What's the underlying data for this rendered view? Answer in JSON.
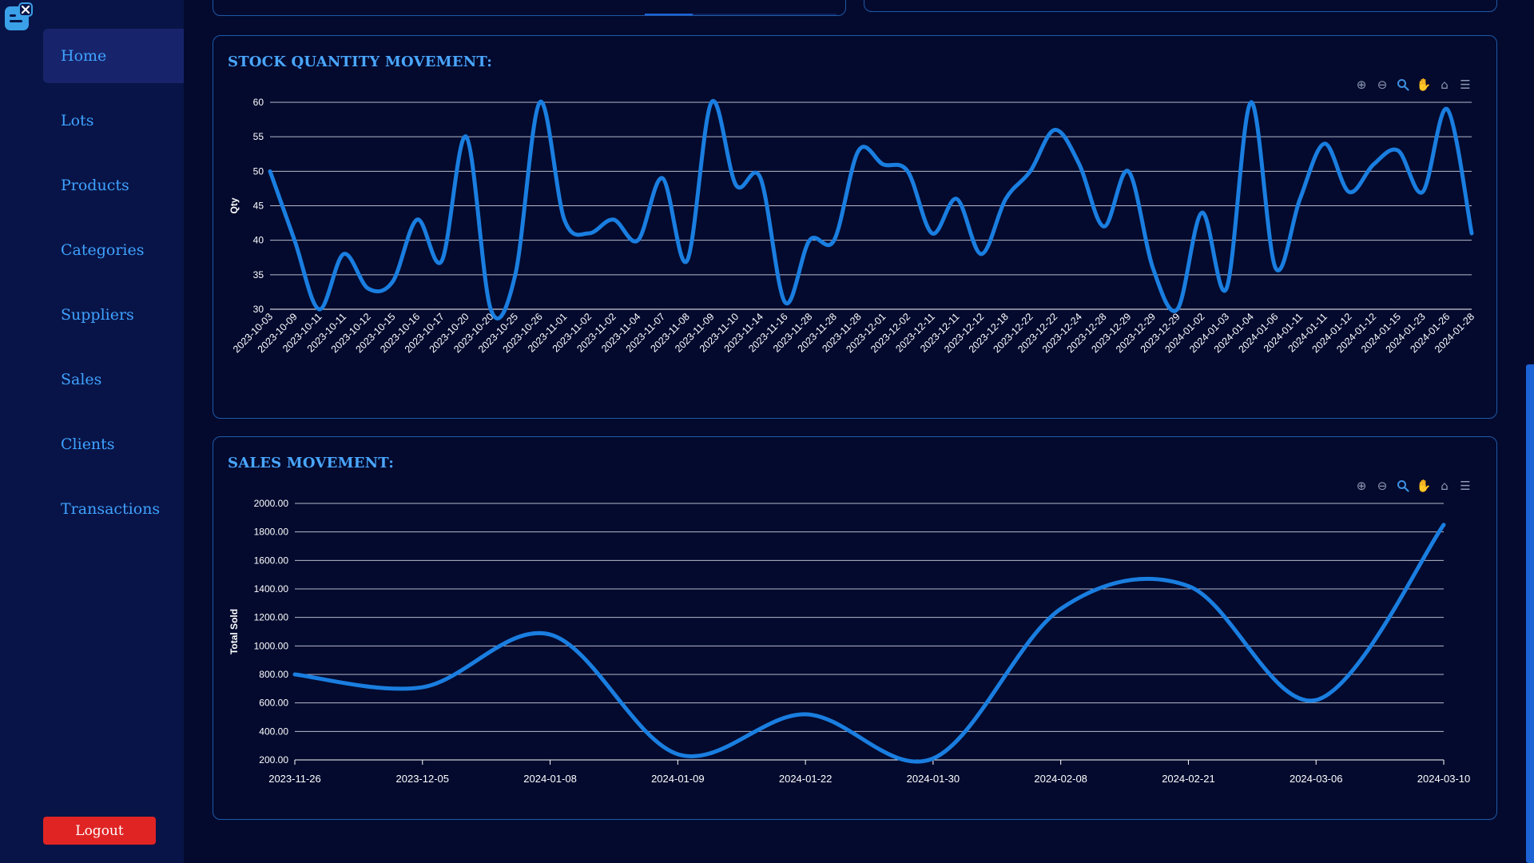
{
  "sidebar": {
    "items": [
      {
        "label": "Home",
        "active": true
      },
      {
        "label": "Lots",
        "active": false
      },
      {
        "label": "Products",
        "active": false
      },
      {
        "label": "Categories",
        "active": false
      },
      {
        "label": "Suppliers",
        "active": false
      },
      {
        "label": "Sales",
        "active": false
      },
      {
        "label": "Clients",
        "active": false
      },
      {
        "label": "Transactions",
        "active": false
      }
    ],
    "logout_label": "Logout"
  },
  "toolbar_icons": [
    "zoom-in-icon",
    "zoom-out-icon",
    "zoom-selection-icon",
    "pan-icon",
    "reset-home-icon",
    "menu-icon"
  ],
  "colors": {
    "line": "#1a7ee0",
    "accent": "#4aa6ff",
    "logout": "#e02424",
    "background": "#030a2e",
    "sidebar": "#081447"
  },
  "stock_chart": {
    "title": "STOCK QUANTITY MOVEMENT:",
    "chart_data": {
      "type": "line",
      "title": "STOCK QUANTITY MOVEMENT:",
      "xlabel": "",
      "ylabel": "Qty",
      "ylim": [
        30,
        60
      ],
      "yticks": [
        "60",
        "55",
        "50",
        "45",
        "40",
        "35",
        "30"
      ],
      "grid": true,
      "categories": [
        "2023-10-03",
        "2023-10-09",
        "2023-10-11",
        "2023-10-11",
        "2023-10-12",
        "2023-10-15",
        "2023-10-16",
        "2023-10-17",
        "2023-10-20",
        "2023-10-20",
        "2023-10-25",
        "2023-10-26",
        "2023-11-01",
        "2023-11-02",
        "2023-11-02",
        "2023-11-04",
        "2023-11-07",
        "2023-11-08",
        "2023-11-09",
        "2023-11-10",
        "2023-11-14",
        "2023-11-16",
        "2023-11-28",
        "2023-11-28",
        "2023-11-28",
        "2023-12-01",
        "2023-12-02",
        "2023-12-11",
        "2023-12-11",
        "2023-12-12",
        "2023-12-18",
        "2023-12-22",
        "2023-12-22",
        "2023-12-24",
        "2023-12-28",
        "2023-12-29",
        "2023-12-29",
        "2023-12-29",
        "2024-01-02",
        "2024-01-03",
        "2024-01-04",
        "2024-01-06",
        "2024-01-11",
        "2024-01-11",
        "2024-01-12",
        "2024-01-12",
        "2024-01-15",
        "2024-01-23",
        "2024-01-26",
        "2024-01-28"
      ],
      "series": [
        {
          "values": [
            50,
            40,
            30,
            38,
            33,
            34,
            43,
            37,
            55,
            30,
            35,
            60,
            43,
            41,
            43,
            40,
            49,
            37,
            60,
            48,
            49,
            31,
            40,
            40,
            53,
            51,
            50,
            41,
            46,
            38,
            46,
            50,
            56,
            51,
            42,
            50,
            36,
            30,
            44,
            33,
            60,
            36,
            46,
            54,
            47,
            51,
            53,
            47,
            59,
            41
          ]
        }
      ]
    }
  },
  "sales_chart": {
    "title": "SALES MOVEMENT:",
    "chart_data": {
      "type": "line",
      "title": "SALES MOVEMENT:",
      "xlabel": "",
      "ylabel": "Total Sold",
      "ylim": [
        200,
        2000
      ],
      "yticks": [
        "2000.00",
        "1800.00",
        "1600.00",
        "1400.00",
        "1200.00",
        "1000.00",
        "800.00",
        "600.00",
        "400.00",
        "200.00"
      ],
      "grid": true,
      "categories": [
        "2023-11-26",
        "2023-12-05",
        "2024-01-08",
        "2024-01-09",
        "2024-01-22",
        "2024-01-30",
        "2024-02-08",
        "2024-02-21",
        "2024-03-06",
        "2024-03-10"
      ],
      "series": [
        {
          "values": [
            800,
            710,
            1080,
            240,
            520,
            210,
            1260,
            1420,
            620,
            1850
          ]
        }
      ]
    }
  }
}
